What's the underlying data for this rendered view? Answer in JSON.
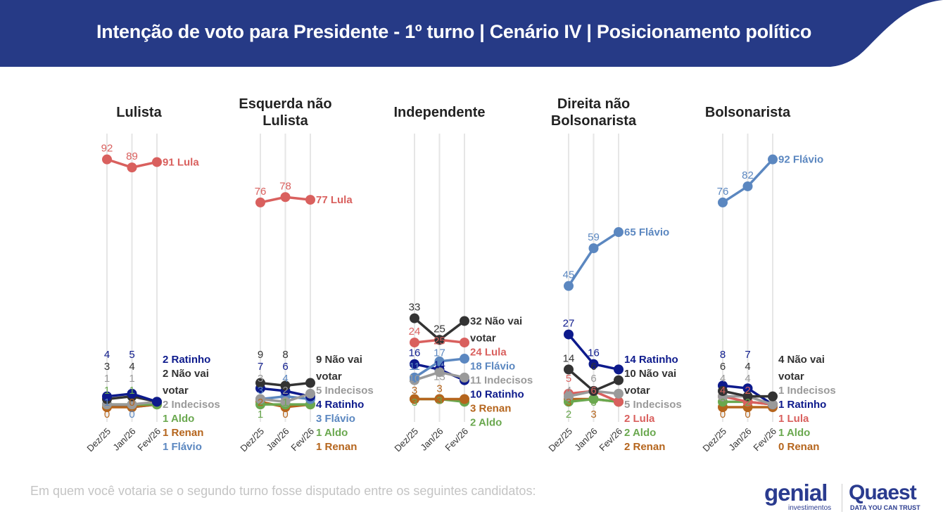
{
  "header": {
    "title": "Intenção de voto para Presidente - 1º turno | Cenário IV | Posicionamento político",
    "color": "#263a86"
  },
  "footer": {
    "question": "Em quem você votaria se o segundo turno fosse disputado entre os seguintes candidatos:"
  },
  "logos": {
    "genial": "genial",
    "genial_sub": "investimentos",
    "quaest": "Quaest",
    "quaest_sub": "DATA YOU CAN TRUST"
  },
  "colors": {
    "Lula": "#d9605e",
    "Flávio": "#5b87c0",
    "Ratinho": "#0d1a8c",
    "Não vai votar": "#333333",
    "Indecisos": "#9a9a9a",
    "Aldo": "#6aa84f",
    "Renan": "#b5651d"
  },
  "chart_data": {
    "type": "line",
    "x": [
      "Dez/25",
      "Jan/26",
      "Fev/26"
    ],
    "ylim": [
      0,
      100
    ],
    "grid": "vertical",
    "panels": [
      {
        "title": "Lulista",
        "series": [
          {
            "name": "Lula",
            "values": [
              92,
              89,
              91
            ]
          },
          {
            "name": "Ratinho",
            "values": [
              4,
              5,
              2
            ]
          },
          {
            "name": "Não vai votar",
            "values": [
              3,
              4,
              2
            ]
          },
          {
            "name": "Indecisos",
            "values": [
              1,
              1,
              2
            ]
          },
          {
            "name": "Aldo",
            "values": [
              1,
              1,
              1
            ]
          },
          {
            "name": "Renan",
            "values": [
              0,
              0,
              1
            ]
          },
          {
            "name": "Flávio",
            "values": [
              1,
              0,
              1
            ]
          }
        ]
      },
      {
        "title": "Esquerda não Lulista",
        "series": [
          {
            "name": "Lula",
            "values": [
              76,
              78,
              77
            ]
          },
          {
            "name": "Não vai votar",
            "values": [
              9,
              8,
              9
            ]
          },
          {
            "name": "Indecisos",
            "values": [
              3,
              2,
              5
            ]
          },
          {
            "name": "Ratinho",
            "values": [
              7,
              6,
              4
            ]
          },
          {
            "name": "Flávio",
            "values": [
              3,
              4,
              3
            ]
          },
          {
            "name": "Aldo",
            "values": [
              1,
              1,
              1
            ]
          },
          {
            "name": "Renan",
            "values": [
              2,
              0,
              1
            ]
          }
        ]
      },
      {
        "title": "Independente",
        "series": [
          {
            "name": "Não vai votar",
            "values": [
              33,
              25,
              32
            ]
          },
          {
            "name": "Lula",
            "values": [
              24,
              25,
              24
            ]
          },
          {
            "name": "Flávio",
            "values": [
              11,
              17,
              18
            ]
          },
          {
            "name": "Indecisos",
            "values": [
              10,
              13,
              11
            ]
          },
          {
            "name": "Ratinho",
            "values": [
              16,
              14,
              10
            ]
          },
          {
            "name": "Renan",
            "values": [
              3,
              3,
              3
            ]
          },
          {
            "name": "Aldo",
            "values": [
              3,
              3,
              2
            ]
          }
        ]
      },
      {
        "title": "Direita não Bolsonarista",
        "series": [
          {
            "name": "Flávio",
            "values": [
              45,
              59,
              65
            ]
          },
          {
            "name": "Ratinho",
            "values": [
              27,
              16,
              14
            ]
          },
          {
            "name": "Não vai votar",
            "values": [
              14,
              6,
              10
            ]
          },
          {
            "name": "Indecisos",
            "values": [
              4,
              6,
              5
            ]
          },
          {
            "name": "Lula",
            "values": [
              5,
              6,
              2
            ]
          },
          {
            "name": "Aldo",
            "values": [
              2,
              3,
              2
            ]
          },
          {
            "name": "Renan",
            "values": [
              3,
              3,
              2
            ]
          }
        ]
      },
      {
        "title": "Bolsonarista",
        "series": [
          {
            "name": "Flávio",
            "values": [
              76,
              82,
              92
            ]
          },
          {
            "name": "Não vai votar",
            "values": [
              6,
              4,
              4
            ]
          },
          {
            "name": "Indecisos",
            "values": [
              4,
              4,
              1
            ]
          },
          {
            "name": "Ratinho",
            "values": [
              8,
              7,
              1
            ]
          },
          {
            "name": "Lula",
            "values": [
              4,
              2,
              1
            ]
          },
          {
            "name": "Aldo",
            "values": [
              2,
              2,
              1
            ]
          },
          {
            "name": "Renan",
            "values": [
              0,
              0,
              0
            ]
          }
        ]
      }
    ]
  }
}
